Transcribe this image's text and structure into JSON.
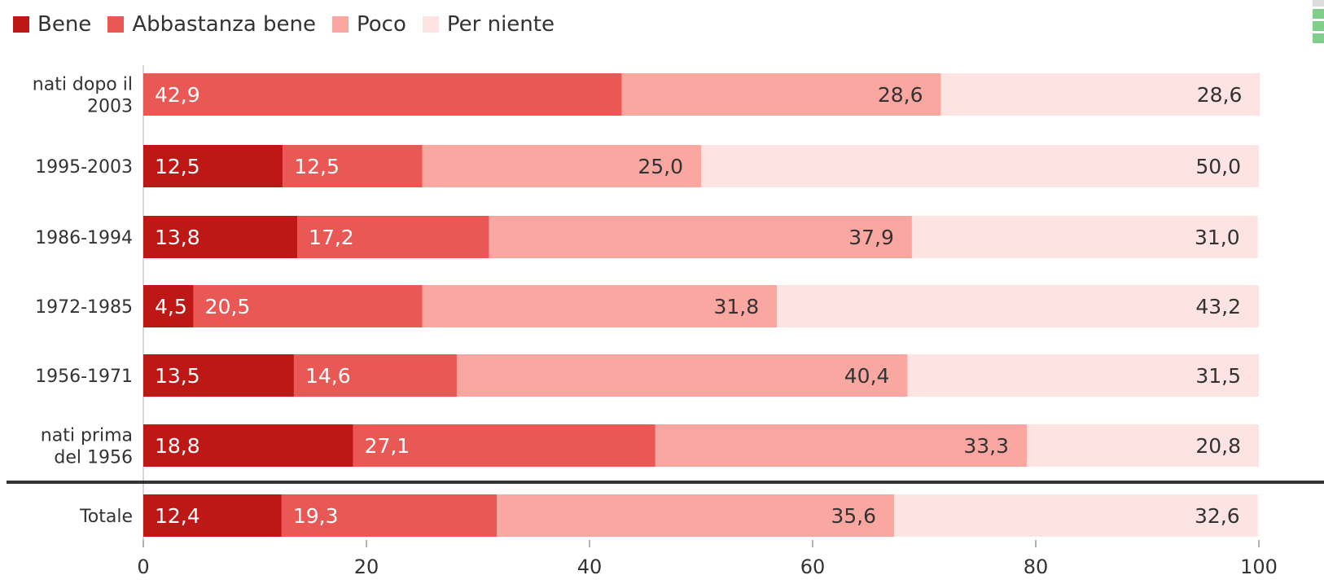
{
  "chart_data": {
    "type": "bar",
    "orientation": "horizontal",
    "stacked": true,
    "categories": [
      "nati dopo il 2003",
      "1995-2003",
      "1986-1994",
      "1972-1985",
      "1956-1971",
      "nati prima del 1956",
      "Totale"
    ],
    "category_lines": [
      [
        "nati dopo il",
        "2003"
      ],
      [
        "1995-2003"
      ],
      [
        "1986-1994"
      ],
      [
        "1972-1985"
      ],
      [
        "1956-1971"
      ],
      [
        "nati prima",
        "del 1956"
      ],
      [
        "Totale"
      ]
    ],
    "series": [
      {
        "name": "Bene",
        "color": "#bd1816",
        "values": [
          0,
          12.5,
          13.8,
          4.5,
          13.5,
          18.8,
          12.4
        ],
        "labels": [
          "",
          "12,5",
          "13,8",
          "4,5",
          "13,5",
          "18,8",
          "12,4"
        ]
      },
      {
        "name": "Abbastanza bene",
        "color": "#ea5855",
        "values": [
          42.9,
          12.5,
          17.2,
          20.5,
          14.6,
          27.1,
          19.3
        ],
        "labels": [
          "42,9",
          "12,5",
          "17,2",
          "20,5",
          "14,6",
          "27,1",
          "19,3"
        ]
      },
      {
        "name": "Poco",
        "color": "#f9a7a0",
        "values": [
          28.6,
          25.0,
          37.9,
          31.8,
          40.4,
          33.3,
          35.6
        ],
        "labels": [
          "28,6",
          "25,0",
          "37,9",
          "31,8",
          "40,4",
          "33,3",
          "35,6"
        ]
      },
      {
        "name": "Per niente",
        "color": "#fde4e2",
        "values": [
          28.6,
          50.0,
          31.0,
          43.2,
          31.5,
          20.8,
          32.6
        ],
        "labels": [
          "28,6",
          "50,0",
          "31,0",
          "43,2",
          "31,5",
          "20,8",
          "32,6"
        ]
      }
    ],
    "xlim": [
      0,
      100
    ],
    "xticks": [
      "0",
      "20",
      "40",
      "60",
      "80",
      "100"
    ],
    "legend_position": "top-left",
    "grid": false,
    "separator_before": "Totale"
  }
}
